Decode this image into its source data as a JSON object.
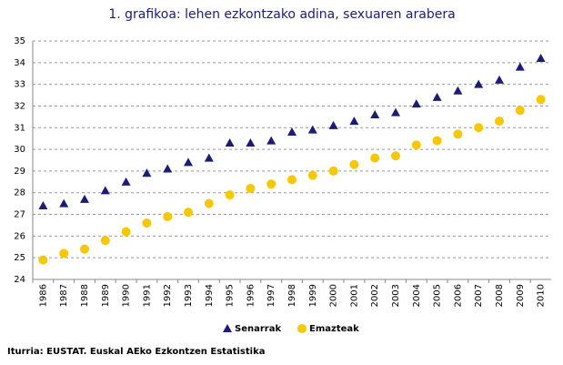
{
  "chart_data": {
    "type": "scatter",
    "title": "1. grafikoa: lehen ezkontzako adina, sexuaren arabera",
    "categories": [
      "1986",
      "1987",
      "1988",
      "1989",
      "1990",
      "1991",
      "1992",
      "1993",
      "1994",
      "1995",
      "1996",
      "1997",
      "1998",
      "1999",
      "2000",
      "2001",
      "2002",
      "2003",
      "2004",
      "2005",
      "2006",
      "2007",
      "2008",
      "2009",
      "2010"
    ],
    "series": [
      {
        "name": "Senarrak",
        "color": "#1c1c78",
        "marker": "triangle",
        "values": [
          27.4,
          27.5,
          27.7,
          28.1,
          28.5,
          28.9,
          29.1,
          29.4,
          29.6,
          30.3,
          30.3,
          30.4,
          30.8,
          30.9,
          31.1,
          31.3,
          31.6,
          31.7,
          32.1,
          32.4,
          32.7,
          33.0,
          33.2,
          33.8,
          34.2
        ]
      },
      {
        "name": "Emazteak",
        "color": "#f5c800",
        "marker": "circle",
        "values": [
          24.9,
          25.2,
          25.4,
          25.8,
          26.2,
          26.6,
          26.9,
          27.1,
          27.5,
          27.9,
          28.2,
          28.4,
          28.6,
          28.8,
          29.0,
          29.3,
          29.6,
          29.7,
          30.2,
          30.4,
          30.7,
          31.0,
          31.3,
          31.8,
          32.3
        ]
      }
    ],
    "ylim": [
      24,
      35
    ],
    "yticks": [
      24,
      25,
      26,
      27,
      28,
      29,
      30,
      31,
      32,
      33,
      34,
      35
    ],
    "grid": true,
    "legend": "bottom",
    "source": "Iturria: EUSTAT. Euskal AEko Ezkontzen Estatistika"
  }
}
